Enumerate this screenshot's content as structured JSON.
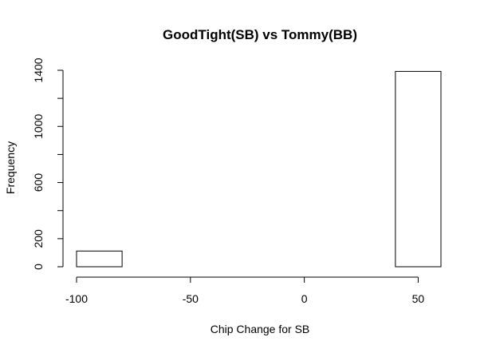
{
  "chart_data": {
    "type": "bar",
    "title": "GoodTight(SB) vs Tommy(BB)",
    "xlabel": "Chip Change for SB",
    "ylabel": "Frequency",
    "xlim": [
      -100,
      60
    ],
    "ylim": [
      0,
      1400
    ],
    "x_ticks": [
      -100,
      -50,
      0,
      50
    ],
    "y_ticks": [
      0,
      200,
      600,
      1000,
      1400
    ],
    "y_minor_ticks": [
      400,
      800,
      1200
    ],
    "bins": [
      {
        "from": -100,
        "to": -80,
        "count": 112
      },
      {
        "from": -80,
        "to": -60,
        "count": 0
      },
      {
        "from": -60,
        "to": -40,
        "count": 0
      },
      {
        "from": -40,
        "to": -20,
        "count": 0
      },
      {
        "from": -20,
        "to": 0,
        "count": 0
      },
      {
        "from": 0,
        "to": 20,
        "count": 0
      },
      {
        "from": 20,
        "to": 40,
        "count": 0
      },
      {
        "from": 40,
        "to": 60,
        "count": 1392
      }
    ],
    "grid": false,
    "legend": false
  }
}
